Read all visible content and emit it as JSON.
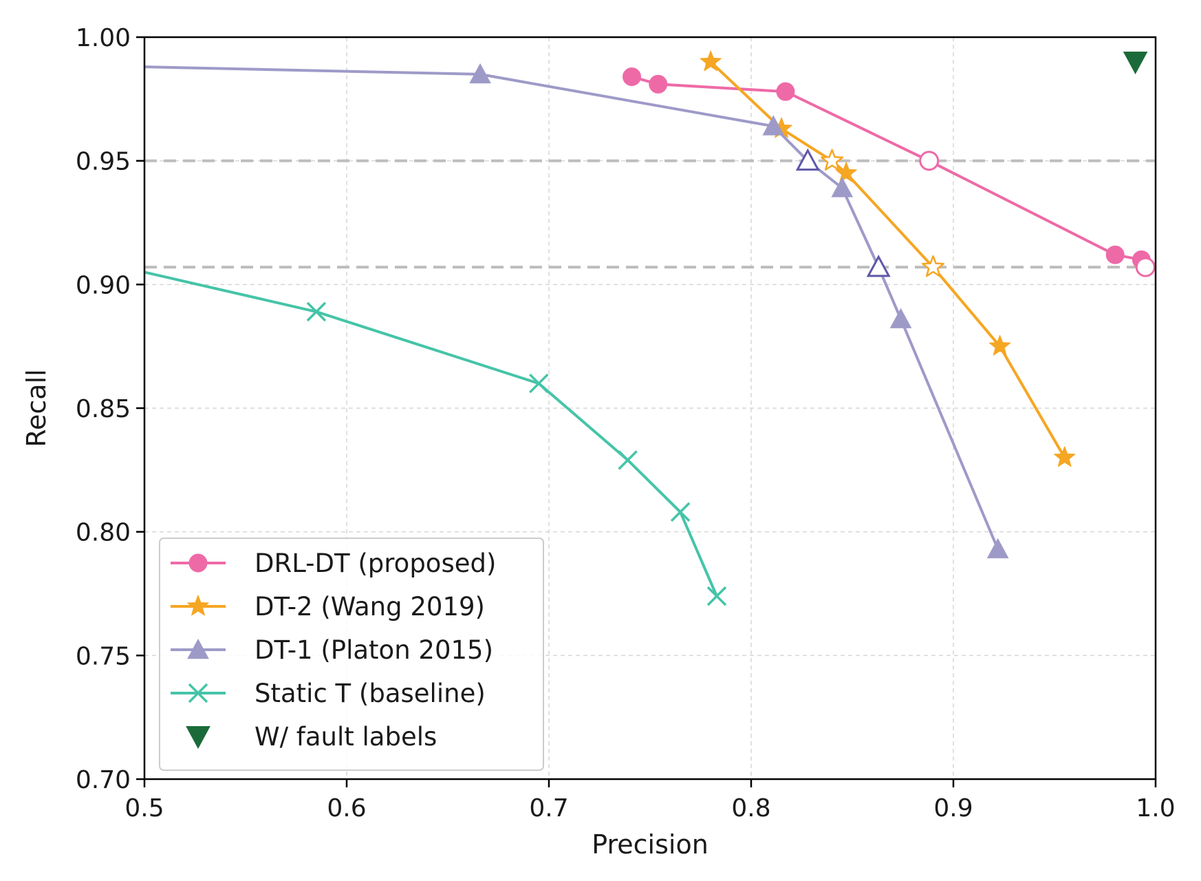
{
  "chart_data": {
    "type": "line",
    "title": "",
    "xlabel": "Precision",
    "ylabel": "Recall",
    "xlim": [
      0.5,
      1.0
    ],
    "ylim": [
      0.7,
      1.0
    ],
    "xticks": [
      0.5,
      0.6,
      0.7,
      0.8,
      0.9,
      1.0
    ],
    "xtick_labels": [
      "0.5",
      "0.6",
      "0.7",
      "0.8",
      "0.9",
      "1.0"
    ],
    "yticks": [
      0.7,
      0.75,
      0.8,
      0.85,
      0.9,
      0.95,
      1.0
    ],
    "ytick_labels": [
      "0.70",
      "0.75",
      "0.80",
      "0.85",
      "0.90",
      "0.95",
      "1.00"
    ],
    "grid": true,
    "legend_position": "lower-left",
    "reference_lines": [
      0.95,
      0.907
    ],
    "series": [
      {
        "name": "DRL-DT (proposed)",
        "marker": "circle",
        "color": "#ee6aa7",
        "points": [
          {
            "x": 0.741,
            "y": 0.984
          },
          {
            "x": 0.754,
            "y": 0.981
          },
          {
            "x": 0.817,
            "y": 0.978
          },
          {
            "x": 0.888,
            "y": 0.95,
            "hollow": true
          },
          {
            "x": 0.98,
            "y": 0.912
          },
          {
            "x": 0.993,
            "y": 0.91
          },
          {
            "x": 0.995,
            "y": 0.907,
            "hollow": true
          }
        ]
      },
      {
        "name": "DT-2 (Wang 2019)",
        "marker": "star",
        "color": "#f5a623",
        "points": [
          {
            "x": 0.78,
            "y": 0.99
          },
          {
            "x": 0.815,
            "y": 0.963
          },
          {
            "x": 0.84,
            "y": 0.95,
            "hollow": true
          },
          {
            "x": 0.847,
            "y": 0.945
          },
          {
            "x": 0.89,
            "y": 0.907,
            "hollow": true
          },
          {
            "x": 0.923,
            "y": 0.875
          },
          {
            "x": 0.955,
            "y": 0.83
          }
        ]
      },
      {
        "name": "DT-1 (Platon 2015)",
        "marker": "triangle-up",
        "color": "#9e9ac8",
        "hollow_stroke": "#5e57a8",
        "points": [
          {
            "x": 0.5,
            "y": 0.988,
            "no_marker": true
          },
          {
            "x": 0.666,
            "y": 0.985
          },
          {
            "x": 0.811,
            "y": 0.964
          },
          {
            "x": 0.828,
            "y": 0.95,
            "hollow": true
          },
          {
            "x": 0.845,
            "y": 0.939
          },
          {
            "x": 0.863,
            "y": 0.907,
            "hollow": true
          },
          {
            "x": 0.874,
            "y": 0.886
          },
          {
            "x": 0.922,
            "y": 0.793
          }
        ]
      },
      {
        "name": "Static T (baseline)",
        "marker": "x",
        "color": "#45c4a8",
        "points": [
          {
            "x": 0.5,
            "y": 0.905,
            "no_marker": true
          },
          {
            "x": 0.585,
            "y": 0.889
          },
          {
            "x": 0.695,
            "y": 0.86
          },
          {
            "x": 0.739,
            "y": 0.829
          },
          {
            "x": 0.765,
            "y": 0.808
          },
          {
            "x": 0.783,
            "y": 0.774
          }
        ]
      },
      {
        "name": "W/ fault labels",
        "marker": "triangle-down",
        "color": "#1b6b3a",
        "no_line": true,
        "points": [
          {
            "x": 0.99,
            "y": 0.99
          }
        ]
      }
    ]
  }
}
